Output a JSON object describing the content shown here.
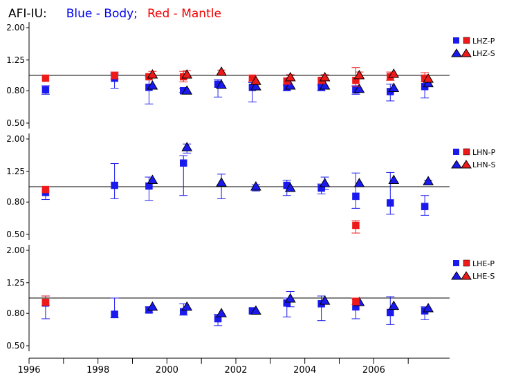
{
  "title": {
    "station": "AFI-IU:",
    "blue_text": "Blue - Body;",
    "red_text": "Red - Mantle",
    "colors": {
      "station": "#000000",
      "blue": "#0000ee",
      "red": "#ee0000"
    }
  },
  "chart_data": [
    {
      "type": "scatter",
      "panel": "LHZ",
      "log_scale": true,
      "ylim": [
        0.45,
        2.05
      ],
      "yticks": [
        "2.00",
        "1.25",
        "0.80",
        "0.50"
      ],
      "reference_line": 1.0,
      "legend": [
        "LHZ-P",
        "LHZ-S"
      ],
      "series": [
        {
          "name": "LHZ-P",
          "component": "Body",
          "marker": "square",
          "points": [
            {
              "x": 1996.5,
              "y": 0.81,
              "lo": 0.76,
              "hi": 0.86
            },
            {
              "x": 1998.5,
              "y": 0.96,
              "lo": 0.83,
              "hi": 1.02
            },
            {
              "x": 1999.5,
              "y": 0.84,
              "lo": 0.66,
              "hi": 0.98
            },
            {
              "x": 2000.5,
              "y": 0.8,
              "lo": 0.78,
              "hi": 0.83
            },
            {
              "x": 2001.5,
              "y": 0.88,
              "lo": 0.73,
              "hi": 0.94
            },
            {
              "x": 2002.5,
              "y": 0.84,
              "lo": 0.68,
              "hi": 0.9
            },
            {
              "x": 2003.5,
              "y": 0.84,
              "lo": 0.8,
              "hi": 0.87
            },
            {
              "x": 2004.5,
              "y": 0.84,
              "lo": 0.8,
              "hi": 0.87
            },
            {
              "x": 2005.5,
              "y": 0.81,
              "lo": 0.76,
              "hi": 0.86
            },
            {
              "x": 2006.5,
              "y": 0.79,
              "lo": 0.69,
              "hi": 0.88
            },
            {
              "x": 2007.5,
              "y": 0.85,
              "lo": 0.72,
              "hi": 0.98
            }
          ]
        },
        {
          "name": "LHZ-S",
          "component": "Body",
          "marker": "triangle",
          "points": [
            {
              "x": 1999.5,
              "y": 0.86
            },
            {
              "x": 2000.5,
              "y": 0.8
            },
            {
              "x": 2001.5,
              "y": 0.87
            },
            {
              "x": 2002.5,
              "y": 0.85
            },
            {
              "x": 2003.5,
              "y": 0.86
            },
            {
              "x": 2004.5,
              "y": 0.86
            },
            {
              "x": 2005.5,
              "y": 0.82
            },
            {
              "x": 2006.5,
              "y": 0.83
            },
            {
              "x": 2007.5,
              "y": 0.89
            }
          ]
        },
        {
          "name": "LHZ-P",
          "component": "Mantle",
          "marker": "square",
          "points": [
            {
              "x": 1996.5,
              "y": 0.96
            },
            {
              "x": 1998.5,
              "y": 1.0,
              "lo": 0.95,
              "hi": 1.05
            },
            {
              "x": 1999.5,
              "y": 0.98
            },
            {
              "x": 2000.5,
              "y": 0.98,
              "lo": 0.91,
              "hi": 1.06
            },
            {
              "x": 2002.5,
              "y": 0.96,
              "lo": 0.92,
              "hi": 1.0
            },
            {
              "x": 2003.5,
              "y": 0.92
            },
            {
              "x": 2004.5,
              "y": 0.93
            },
            {
              "x": 2005.5,
              "y": 0.93,
              "lo": 0.85,
              "hi": 1.12
            },
            {
              "x": 2006.5,
              "y": 0.98,
              "lo": 0.93,
              "hi": 1.05
            },
            {
              "x": 2007.5,
              "y": 0.96,
              "lo": 0.91,
              "hi": 1.04
            }
          ]
        },
        {
          "name": "LHZ-S",
          "component": "Mantle",
          "marker": "triangle",
          "points": [
            {
              "x": 1999.5,
              "y": 1.01,
              "lo": 0.97,
              "hi": 1.06
            },
            {
              "x": 2000.5,
              "y": 1.01,
              "lo": 0.96,
              "hi": 1.07
            },
            {
              "x": 2001.5,
              "y": 1.05,
              "lo": 1.02,
              "hi": 1.08
            },
            {
              "x": 2002.5,
              "y": 0.92
            },
            {
              "x": 2003.5,
              "y": 0.97,
              "lo": 0.94,
              "hi": 1.01
            },
            {
              "x": 2004.5,
              "y": 0.97,
              "lo": 0.93,
              "hi": 1.01
            },
            {
              "x": 2005.5,
              "y": 1.0,
              "lo": 0.95,
              "hi": 1.05
            },
            {
              "x": 2006.5,
              "y": 1.02
            },
            {
              "x": 2007.5,
              "y": 0.95
            }
          ]
        }
      ]
    },
    {
      "type": "scatter",
      "panel": "LHN",
      "log_scale": true,
      "ylim": [
        0.45,
        2.05
      ],
      "yticks": [
        "2.00",
        "1.25",
        "0.80",
        "0.50"
      ],
      "reference_line": 1.0,
      "legend": [
        "LHN-P",
        "LHN-S"
      ],
      "series": [
        {
          "name": "LHN-P",
          "component": "Body",
          "marker": "square",
          "points": [
            {
              "x": 1996.5,
              "y": 0.92,
              "lo": 0.83,
              "hi": 1.0
            },
            {
              "x": 1998.5,
              "y": 1.02,
              "lo": 0.84,
              "hi": 1.4
            },
            {
              "x": 1999.5,
              "y": 1.01,
              "lo": 0.82,
              "hi": 1.15
            },
            {
              "x": 2000.5,
              "y": 1.41,
              "lo": 0.88,
              "hi": 1.57
            },
            {
              "x": 2003.5,
              "y": 1.02,
              "lo": 0.88,
              "hi": 1.1
            },
            {
              "x": 2004.5,
              "y": 0.98,
              "lo": 0.9,
              "hi": 1.04
            },
            {
              "x": 2005.5,
              "y": 0.87,
              "lo": 0.73,
              "hi": 1.22
            },
            {
              "x": 2006.5,
              "y": 0.79,
              "lo": 0.67,
              "hi": 1.23
            },
            {
              "x": 2007.5,
              "y": 0.75,
              "lo": 0.66,
              "hi": 0.88
            }
          ]
        },
        {
          "name": "LHN-S",
          "component": "Body",
          "marker": "triangle",
          "points": [
            {
              "x": 1999.5,
              "y": 1.1
            },
            {
              "x": 2000.5,
              "y": 1.77,
              "lo": 1.63,
              "hi": 1.86
            },
            {
              "x": 2001.5,
              "y": 1.06,
              "lo": 0.84,
              "hi": 1.2
            },
            {
              "x": 2002.5,
              "y": 1.0,
              "lo": 0.94,
              "hi": 1.03
            },
            {
              "x": 2003.5,
              "y": 0.98
            },
            {
              "x": 2004.5,
              "y": 1.05,
              "lo": 0.96,
              "hi": 1.15
            },
            {
              "x": 2005.5,
              "y": 1.05
            },
            {
              "x": 2006.5,
              "y": 1.1
            },
            {
              "x": 2007.5,
              "y": 1.08,
              "lo": 1.05,
              "hi": 1.1
            }
          ]
        },
        {
          "name": "LHN-P",
          "component": "Mantle",
          "marker": "square",
          "points": [
            {
              "x": 1996.5,
              "y": 0.96
            },
            {
              "x": 2005.5,
              "y": 0.57,
              "lo": 0.51,
              "hi": 0.61
            }
          ]
        },
        {
          "name": "LHN-S",
          "component": "Mantle",
          "marker": "triangle",
          "points": []
        }
      ]
    },
    {
      "type": "scatter",
      "panel": "LHE",
      "log_scale": true,
      "ylim": [
        0.45,
        2.05
      ],
      "yticks": [
        "2.00",
        "1.25",
        "0.80",
        "0.50"
      ],
      "reference_line": 1.0,
      "legend": [
        "LHE-P",
        "LHE-S"
      ],
      "series": [
        {
          "name": "LHE-P",
          "component": "Body",
          "marker": "square",
          "points": [
            {
              "x": 1996.5,
              "y": 0.93,
              "lo": 0.74,
              "hi": 1.03
            },
            {
              "x": 1998.5,
              "y": 0.79,
              "lo": 0.75,
              "hi": 1.0
            },
            {
              "x": 1999.5,
              "y": 0.84,
              "lo": 0.81,
              "hi": 0.88
            },
            {
              "x": 2000.5,
              "y": 0.82,
              "lo": 0.78,
              "hi": 0.92
            },
            {
              "x": 2001.5,
              "y": 0.74,
              "lo": 0.67,
              "hi": 0.79
            },
            {
              "x": 2002.5,
              "y": 0.83
            },
            {
              "x": 2003.5,
              "y": 0.93,
              "lo": 0.76,
              "hi": 1.0
            },
            {
              "x": 2004.5,
              "y": 0.92,
              "lo": 0.72,
              "hi": 1.03
            },
            {
              "x": 2005.5,
              "y": 0.88,
              "lo": 0.74,
              "hi": 0.98
            },
            {
              "x": 2006.5,
              "y": 0.81,
              "lo": 0.68,
              "hi": 1.02
            },
            {
              "x": 2007.5,
              "y": 0.83,
              "lo": 0.73,
              "hi": 0.88
            }
          ]
        },
        {
          "name": "LHE-S",
          "component": "Body",
          "marker": "triangle",
          "points": [
            {
              "x": 1999.5,
              "y": 0.88
            },
            {
              "x": 2000.5,
              "y": 0.88
            },
            {
              "x": 2001.5,
              "y": 0.8
            },
            {
              "x": 2002.5,
              "y": 0.83
            },
            {
              "x": 2003.5,
              "y": 0.99,
              "lo": 0.88,
              "hi": 1.1
            },
            {
              "x": 2004.5,
              "y": 0.96
            },
            {
              "x": 2005.5,
              "y": 0.94
            },
            {
              "x": 2006.5,
              "y": 0.89
            },
            {
              "x": 2007.5,
              "y": 0.86
            }
          ]
        },
        {
          "name": "LHE-P",
          "component": "Mantle",
          "marker": "square",
          "points": [
            {
              "x": 1996.5,
              "y": 0.94,
              "lo": 0.9,
              "hi": 1.03
            },
            {
              "x": 2005.5,
              "y": 0.95,
              "lo": 0.91,
              "hi": 1.0
            }
          ]
        },
        {
          "name": "LHE-S",
          "component": "Mantle",
          "marker": "triangle",
          "points": []
        }
      ]
    }
  ],
  "x_axis": {
    "xlim": [
      1996,
      2008.2
    ],
    "tick_labels": [
      "1996",
      "1998",
      "2000",
      "2002",
      "2004",
      "2006"
    ],
    "major_ticks": [
      1996,
      1998,
      2000,
      2002,
      2004,
      2006
    ],
    "minor_ticks": [
      1997,
      1999,
      2001,
      2003,
      2005,
      2007
    ]
  },
  "colors": {
    "body": "#1a1aee",
    "mantle": "#ee1a1a",
    "axis": "#000000"
  }
}
